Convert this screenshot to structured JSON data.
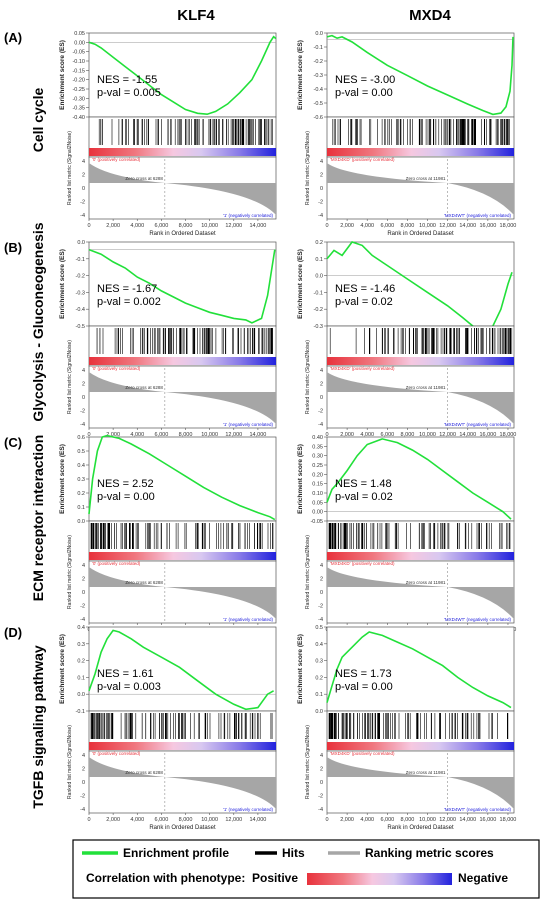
{
  "columns": [
    "KLF4",
    "MXD4"
  ],
  "rows": [
    {
      "tag": "(A)",
      "label": "Cell cycle"
    },
    {
      "tag": "(B)",
      "label": "Glycolysis - Gluconeogenesis"
    },
    {
      "tag": "(C)",
      "label": "ECM receptor interaction"
    },
    {
      "tag": "(D)",
      "label": "TGFB signaling pathway"
    }
  ],
  "axis_text": {
    "es_ylabel": "Enrichment score (ES)",
    "rank_ylabel": "Ranked list metric (Signal2Noise)",
    "xlabel": "Rank in Ordered Dataset"
  },
  "legend": {
    "enrichment": "Enrichment profile",
    "hits": "Hits",
    "ranking": "Ranking metric scores",
    "correlation": "Correlation with phenotype:",
    "positive": "Positive",
    "negative": "Negative"
  },
  "colors": {
    "enrichment_line": "#22e03a",
    "hits": "#000000",
    "ranking": "#a6a6a6",
    "positive": "#e8323c",
    "negative": "#2222dd"
  },
  "chart_data": [
    {
      "type": "line",
      "row": 0,
      "col": 0,
      "nes": "NES = -1.55",
      "pval": "p-val = 0.005",
      "ylim": [
        -0.4,
        0.05
      ],
      "yticks": [
        "0.05",
        "0.00",
        "-0.05",
        "-0.10",
        "-0.15",
        "-0.20",
        "-0.25",
        "-0.30",
        "-0.35",
        "-0.40"
      ],
      "xmax": 15500,
      "xticks": [
        "0",
        "2,000",
        "4,000",
        "6,000",
        "8,000",
        "10,000",
        "12,000",
        "14,000"
      ],
      "rank_yticks": [
        "4",
        "2",
        "0",
        "-2",
        "-4"
      ],
      "pos_label": "'0' (positively correlated)",
      "neg_label": "'1' (negatively correlated)",
      "zero_label": "Zero cross at 6288",
      "zero_x": 6288,
      "es_x": [
        0,
        500,
        1000,
        2000,
        3000,
        4000,
        5000,
        6000,
        7000,
        8000,
        9000,
        9800,
        10500,
        11500,
        12500,
        13500,
        14300,
        15000,
        15300,
        15500
      ],
      "es_y": [
        0,
        -0.01,
        -0.03,
        -0.08,
        -0.13,
        -0.18,
        -0.23,
        -0.28,
        -0.32,
        -0.36,
        -0.38,
        -0.385,
        -0.37,
        -0.33,
        -0.27,
        -0.2,
        -0.1,
        0.0,
        0.03,
        0.02
      ]
    },
    {
      "type": "line",
      "row": 0,
      "col": 1,
      "nes": "NES = -3.00",
      "pval": "p-val = 0.00",
      "ylim": [
        -0.6,
        0.05
      ],
      "yticks": [
        "0.0",
        "-0.1",
        "-0.2",
        "-0.3",
        "-0.4",
        "-0.5",
        "-0.6"
      ],
      "xmax": 18600,
      "xticks": [
        "0",
        "2,000",
        "4,000",
        "6,000",
        "8,000",
        "10,000",
        "12,000",
        "14,000",
        "16,000",
        "18,000"
      ],
      "rank_yticks": [
        "4",
        "2",
        "0",
        "-2",
        "-4"
      ],
      "pos_label": "'MXD4KD' (positively correlated)",
      "neg_label": "'MXD4WT' (negatively correlated)",
      "zero_label": "Zero cross at 11981",
      "zero_x": 11981,
      "es_x": [
        0,
        500,
        1000,
        1500,
        2500,
        4000,
        6000,
        8000,
        10000,
        12000,
        14000,
        15500,
        16500,
        17300,
        17800,
        18200,
        18400,
        18500
      ],
      "es_y": [
        0.02,
        0.03,
        0.01,
        0.02,
        -0.02,
        -0.1,
        -0.2,
        -0.28,
        -0.36,
        -0.43,
        -0.5,
        -0.55,
        -0.58,
        -0.57,
        -0.52,
        -0.4,
        -0.2,
        0.02
      ]
    },
    {
      "type": "line",
      "row": 1,
      "col": 0,
      "nes": "NES = -1.67",
      "pval": "p-val = 0.002",
      "ylim": [
        -0.5,
        0.05
      ],
      "yticks": [
        "0.0",
        "-0.1",
        "-0.2",
        "-0.3",
        "-0.4",
        "-0.5"
      ],
      "xmax": 15500,
      "xticks": [
        "0",
        "2,000",
        "4,000",
        "6,000",
        "8,000",
        "10,000",
        "12,000",
        "14,000"
      ],
      "rank_yticks": [
        "4",
        "2",
        "0",
        "-2",
        "-4"
      ],
      "pos_label": "'0' (positively correlated)",
      "neg_label": "'1' (negatively correlated)",
      "zero_label": "Zero cross at 6288",
      "zero_x": 6288,
      "es_x": [
        0,
        1000,
        2000,
        3000,
        4000,
        5000,
        6000,
        7000,
        8000,
        9000,
        10000,
        11000,
        12000,
        13000,
        13500,
        14300,
        14800,
        15200,
        15400
      ],
      "es_y": [
        0,
        -0.03,
        -0.08,
        -0.12,
        -0.18,
        -0.22,
        -0.27,
        -0.31,
        -0.35,
        -0.38,
        -0.41,
        -0.43,
        -0.45,
        -0.46,
        -0.48,
        -0.45,
        -0.3,
        -0.1,
        0.0
      ]
    },
    {
      "type": "line",
      "row": 1,
      "col": 1,
      "nes": "NES = -1.46",
      "pval": "p-val = 0.02",
      "ylim": [
        -0.3,
        0.2
      ],
      "yticks": [
        "0.2",
        "0.1",
        "0.0",
        "-0.1",
        "-0.2",
        "-0.3"
      ],
      "xmax": 18600,
      "xticks": [
        "0",
        "2,000",
        "4,000",
        "6,000",
        "8,000",
        "10,000",
        "12,000",
        "14,000",
        "16,000",
        "18,000"
      ],
      "rank_yticks": [
        "4",
        "2",
        "0",
        "-2",
        "-4"
      ],
      "pos_label": "'MXD4KD' (positively correlated)",
      "neg_label": "'MXD4WT' (negatively correlated)",
      "zero_label": "Zero cross at 11981",
      "zero_x": 11981,
      "es_x": [
        0,
        700,
        1500,
        2500,
        3500,
        4500,
        6000,
        8000,
        10000,
        12000,
        13500,
        14500,
        15500,
        16500,
        17300,
        18000,
        18400
      ],
      "es_y": [
        0.1,
        0.15,
        0.12,
        0.2,
        0.18,
        0.12,
        0.06,
        -0.02,
        -0.1,
        -0.18,
        -0.25,
        -0.3,
        -0.32,
        -0.3,
        -0.2,
        -0.05,
        0.02
      ]
    },
    {
      "type": "line",
      "row": 2,
      "col": 0,
      "nes": "NES = 2.52",
      "pval": "p-val = 0.00",
      "ylim": [
        0,
        0.6
      ],
      "yticks": [
        "0.6",
        "0.5",
        "0.4",
        "0.3",
        "0.2",
        "0.1",
        "0.0"
      ],
      "xmax": 15500,
      "xticks": [
        "0",
        "2,000",
        "4,000",
        "6,000",
        "8,000",
        "10,000",
        "12,000",
        "14,000"
      ],
      "rank_yticks": [
        "4",
        "2",
        "0",
        "-2",
        "-4"
      ],
      "pos_label": "'0' (positively correlated)",
      "neg_label": "'1' (negatively correlated)",
      "zero_label": "Zero cross at 6288",
      "zero_x": 6288,
      "es_x": [
        0,
        300,
        700,
        1100,
        1500,
        2500,
        3500,
        5000,
        6500,
        8000,
        9500,
        11000,
        12500,
        14000,
        15000,
        15400
      ],
      "es_y": [
        0.05,
        0.3,
        0.5,
        0.6,
        0.61,
        0.59,
        0.55,
        0.48,
        0.4,
        0.32,
        0.24,
        0.17,
        0.11,
        0.06,
        0.03,
        0.01
      ]
    },
    {
      "type": "line",
      "row": 2,
      "col": 1,
      "nes": "NES = 1.48",
      "pval": "p-val = 0.02",
      "ylim": [
        -0.05,
        0.4
      ],
      "yticks": [
        "0.40",
        "0.35",
        "0.30",
        "0.25",
        "0.20",
        "0.15",
        "0.10",
        "0.05",
        "0.00",
        "-0.05"
      ],
      "xmax": 18600,
      "xticks": [
        "0",
        "2,000",
        "4,000",
        "6,000",
        "8,000",
        "10,000",
        "12,000",
        "14,000",
        "16,000",
        "18,000"
      ],
      "rank_yticks": [
        "4",
        "2",
        "0",
        "-2",
        "-4"
      ],
      "pos_label": "'MXD4KD' (positively correlated)",
      "neg_label": "'MXD4WT' (negatively correlated)",
      "zero_label": "Zero cross at 11981",
      "zero_x": 11981,
      "es_x": [
        0,
        500,
        1000,
        2000,
        3000,
        4000,
        5500,
        7000,
        8500,
        10000,
        11500,
        13000,
        14500,
        16000,
        17500,
        18300
      ],
      "es_y": [
        0.05,
        0.12,
        0.15,
        0.22,
        0.3,
        0.36,
        0.39,
        0.37,
        0.33,
        0.28,
        0.22,
        0.16,
        0.1,
        0.05,
        0.0,
        -0.04
      ]
    },
    {
      "type": "line",
      "row": 3,
      "col": 0,
      "nes": "NES = 1.61",
      "pval": "p-val = 0.003",
      "ylim": [
        -0.1,
        0.4
      ],
      "yticks": [
        "0.4",
        "0.3",
        "0.2",
        "0.1",
        "0.0",
        "-0.1"
      ],
      "xmax": 15500,
      "xticks": [
        "0",
        "2,000",
        "4,000",
        "6,000",
        "8,000",
        "10,000",
        "12,000",
        "14,000"
      ],
      "rank_yticks": [
        "4",
        "2",
        "0",
        "-2",
        "-4"
      ],
      "pos_label": "'0' (positively correlated)",
      "neg_label": "'1' (negatively correlated)",
      "zero_label": "Zero cross at 6288",
      "zero_x": 6288,
      "es_x": [
        0,
        500,
        1000,
        1500,
        2000,
        2500,
        3500,
        4500,
        6000,
        7500,
        9000,
        10500,
        12000,
        13000,
        14000,
        14800,
        15300
      ],
      "es_y": [
        0.02,
        0.12,
        0.25,
        0.33,
        0.38,
        0.37,
        0.33,
        0.28,
        0.22,
        0.16,
        0.08,
        0.0,
        -0.06,
        -0.09,
        -0.08,
        0.0,
        0.02
      ]
    },
    {
      "type": "line",
      "row": 3,
      "col": 1,
      "nes": "NES = 1.73",
      "pval": "p-val = 0.00",
      "ylim": [
        0,
        0.5
      ],
      "yticks": [
        "0.5",
        "0.4",
        "0.3",
        "0.2",
        "0.1",
        "0.0"
      ],
      "xmax": 18600,
      "xticks": [
        "0",
        "2,000",
        "4,000",
        "6,000",
        "8,000",
        "10,000",
        "12,000",
        "14,000",
        "16,000",
        "18,000"
      ],
      "rank_yticks": [
        "4",
        "2",
        "0",
        "-2",
        "-4"
      ],
      "pos_label": "'MXD4KD' (positively correlated)",
      "neg_label": "'MXD4WT' (negatively correlated)",
      "zero_label": "Zero cross at 11981",
      "zero_x": 11981,
      "es_x": [
        0,
        500,
        1000,
        1500,
        2500,
        3500,
        4200,
        5500,
        7000,
        8500,
        10000,
        11500,
        13000,
        14500,
        16000,
        17500,
        18300
      ],
      "es_y": [
        0.05,
        0.15,
        0.25,
        0.32,
        0.38,
        0.44,
        0.47,
        0.45,
        0.41,
        0.37,
        0.32,
        0.27,
        0.2,
        0.14,
        0.09,
        0.05,
        0.02
      ]
    }
  ]
}
